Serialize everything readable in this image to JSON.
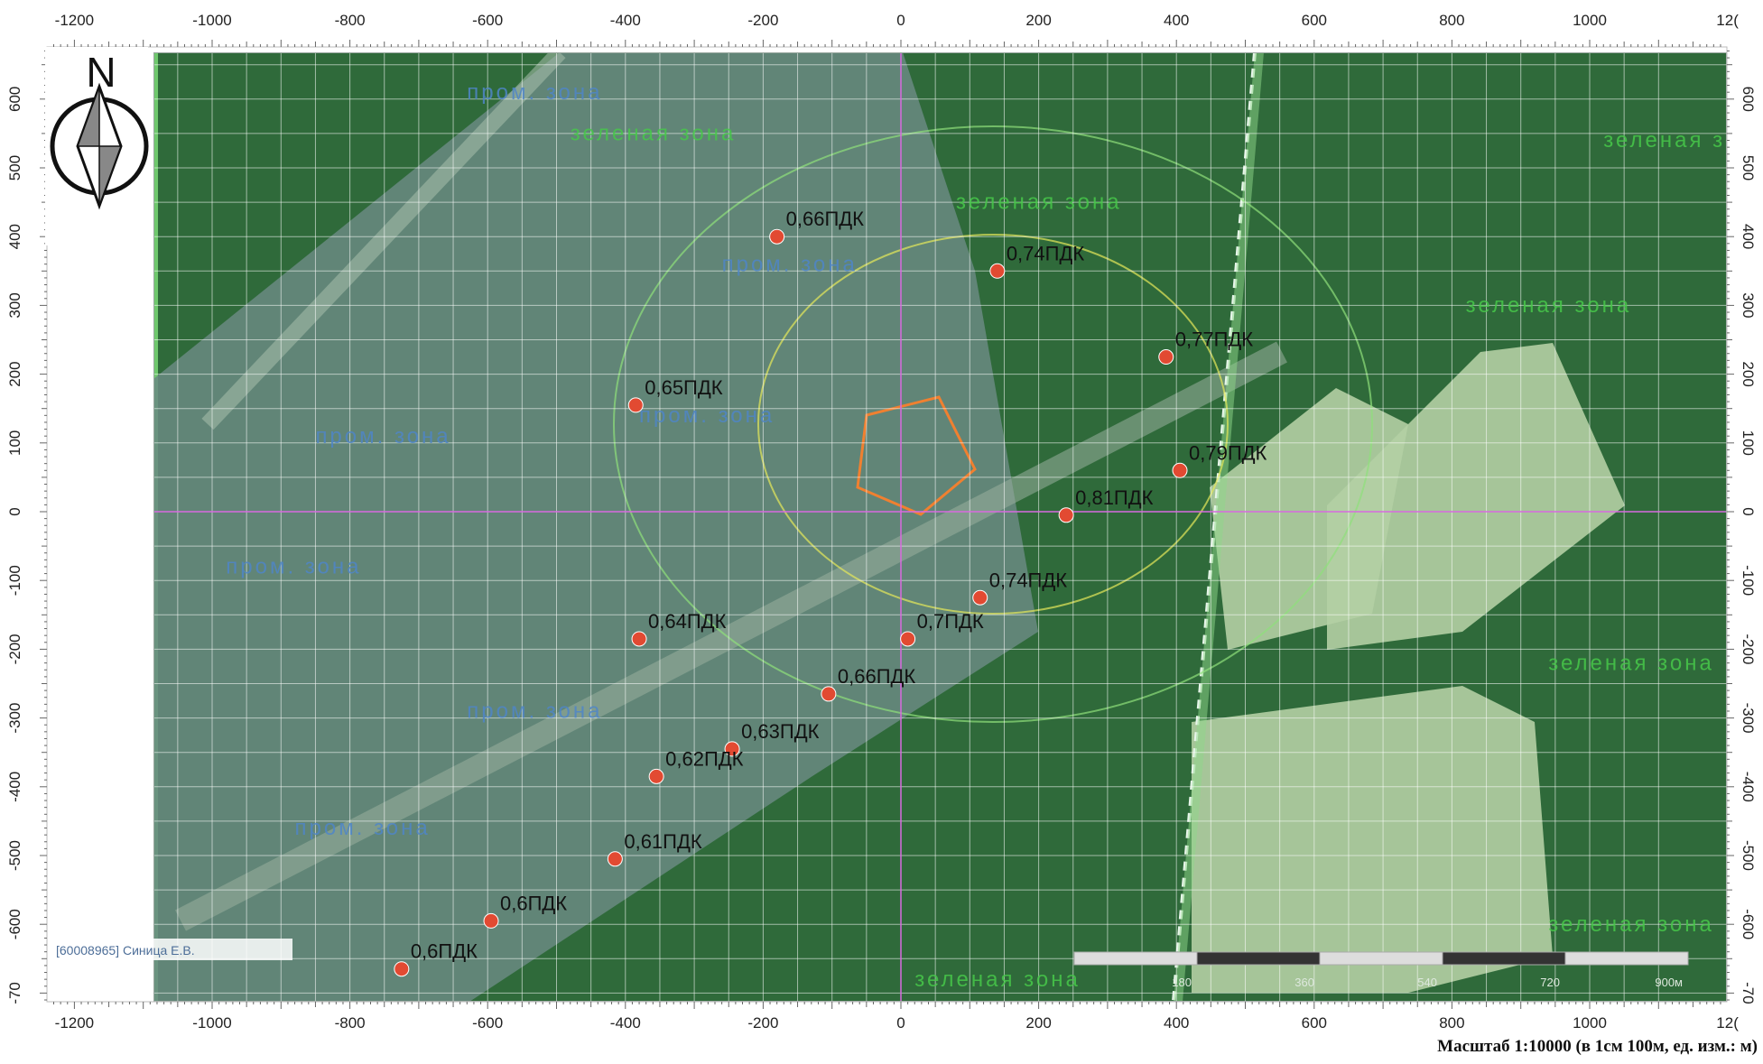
{
  "map": {
    "north_label": "N",
    "operator_stamp": "[60008965] Синица Е.В.",
    "scale_caption": "Масштаб 1:10000 (в 1см 100м, ед. изм.: м)",
    "x_ticks": [
      -1200,
      -1000,
      -800,
      -600,
      -400,
      -200,
      0,
      200,
      400,
      600,
      800,
      1000
    ],
    "x_last_partial": "12(",
    "y_ticks": [
      600,
      500,
      400,
      300,
      200,
      100,
      0,
      -100,
      -200,
      -300,
      -400,
      -500,
      -600
    ],
    "y_last_partial": "-70",
    "scale_bar_labels": [
      "180",
      "360",
      "540",
      "720",
      "900м"
    ],
    "zones": [
      {
        "label": "пром. зона",
        "x": -630,
        "y": 600,
        "color": "#4f86c8"
      },
      {
        "label": "зеленая зона",
        "x": -480,
        "y": 540,
        "color": "#47c84a"
      },
      {
        "label": "зеленая зона",
        "x": 80,
        "y": 440,
        "color": "#47c84a"
      },
      {
        "label": "зеленая зона",
        "x": 1020,
        "y": 530,
        "color": "#47c84a"
      },
      {
        "label": "зеленая зона",
        "x": 820,
        "y": 290,
        "color": "#47c84a"
      },
      {
        "label": "пром. зона",
        "x": -260,
        "y": 350,
        "color": "#4f86c8"
      },
      {
        "label": "пром. зона",
        "x": -380,
        "y": 130,
        "color": "#4f86c8"
      },
      {
        "label": "пром. зона",
        "x": -850,
        "y": 100,
        "color": "#4f86c8"
      },
      {
        "label": "пром. зона",
        "x": -980,
        "y": -90,
        "color": "#4f86c8"
      },
      {
        "label": "пром. зона",
        "x": -630,
        "y": -300,
        "color": "#4f86c8"
      },
      {
        "label": "пром. зона",
        "x": -880,
        "y": -470,
        "color": "#4f86c8"
      },
      {
        "label": "зеленая зона",
        "x": 940,
        "y": -230,
        "color": "#47c84a"
      },
      {
        "label": "зеленая зона",
        "x": 940,
        "y": -610,
        "color": "#47c84a"
      },
      {
        "label": "зеленая зона",
        "x": 20,
        "y": -690,
        "color": "#47c84a"
      }
    ],
    "points": [
      {
        "x": -180,
        "y": 400,
        "label": "0,66ПДК"
      },
      {
        "x": 140,
        "y": 350,
        "label": "0,74ПДК"
      },
      {
        "x": 385,
        "y": 225,
        "label": "0,77ПДК"
      },
      {
        "x": -385,
        "y": 155,
        "label": "0,65ПДК"
      },
      {
        "x": 405,
        "y": 60,
        "label": "0,79ПДК"
      },
      {
        "x": 240,
        "y": -5,
        "label": "0,81ПДК"
      },
      {
        "x": 115,
        "y": -125,
        "label": "0,74ПДК"
      },
      {
        "x": 10,
        "y": -185,
        "label": "0,7ПДК"
      },
      {
        "x": -380,
        "y": -185,
        "label": "0,64ПДК"
      },
      {
        "x": -105,
        "y": -265,
        "label": "0,66ПДК"
      },
      {
        "x": -245,
        "y": -345,
        "label": "0,63ПДК"
      },
      {
        "x": -355,
        "y": -385,
        "label": "0,62ПДК"
      },
      {
        "x": -415,
        "y": -505,
        "label": "0,61ПДК"
      },
      {
        "x": -595,
        "y": -595,
        "label": "0,6ПДК"
      },
      {
        "x": -725,
        "y": -665,
        "label": "0,6ПДК"
      }
    ],
    "colors": {
      "forest": "#2f6a3a",
      "industrial": "#6a8a82",
      "field": "#b4cfa4",
      "point": "#e24a32",
      "grid": "#ffffff",
      "axis_line": "#d76adf"
    }
  }
}
